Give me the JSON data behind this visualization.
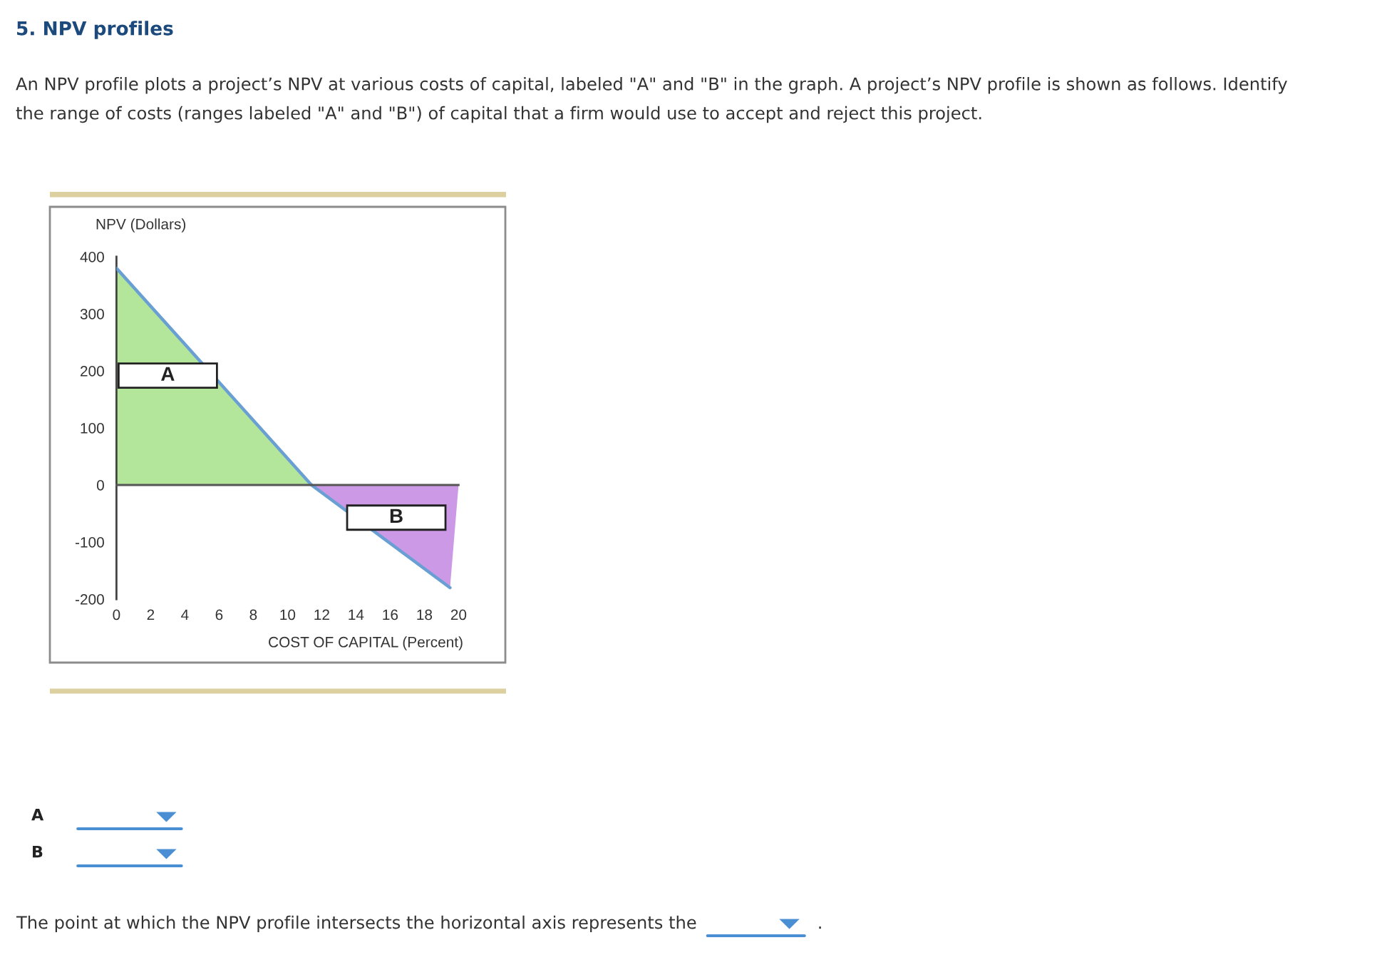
{
  "chart_data": {
    "type": "area",
    "title": "5. NPV profiles",
    "subtitle": "An NPV profile plots a project’s NPV at various costs of capital, labeled \"A\" and \"B\" in the graph. A project’s NPV profile is shown as follows. Identify the range of costs (ranges labeled \"A\" and \"B\") of capital that a firm would use to accept and reject this project.",
    "xlabel": "COST OF CAPITAL (Percent)",
    "ylabel": "NPV (Dollars)",
    "series": [
      {
        "x": [
          0,
          11.4
        ],
        "values": [
          380,
          0
        ],
        "color": "#b3e59b"
      },
      {
        "x": [
          11.4,
          19.5,
          20
        ],
        "values": [
          0,
          -180,
          0
        ],
        "color": "#cc99e6"
      },
      {
        "type": "line",
        "x": [
          0,
          11.4,
          19.5
        ],
        "values": [
          380,
          0,
          -180
        ],
        "color": "#6a9fd4"
      }
    ],
    "xlim": [
      0,
      20
    ],
    "xticks": [
      0,
      2,
      4,
      6,
      8,
      10,
      12,
      14,
      16,
      18,
      20
    ],
    "ylim": [
      -200,
      400
    ],
    "yticks": [
      -200,
      -100,
      0,
      100,
      200,
      300,
      400
    ],
    "annotations": [
      "A",
      "B",
      "A",
      "B",
      "The point at which the NPV profile intersects the horizontal axis represents the",
      "."
    ]
  }
}
